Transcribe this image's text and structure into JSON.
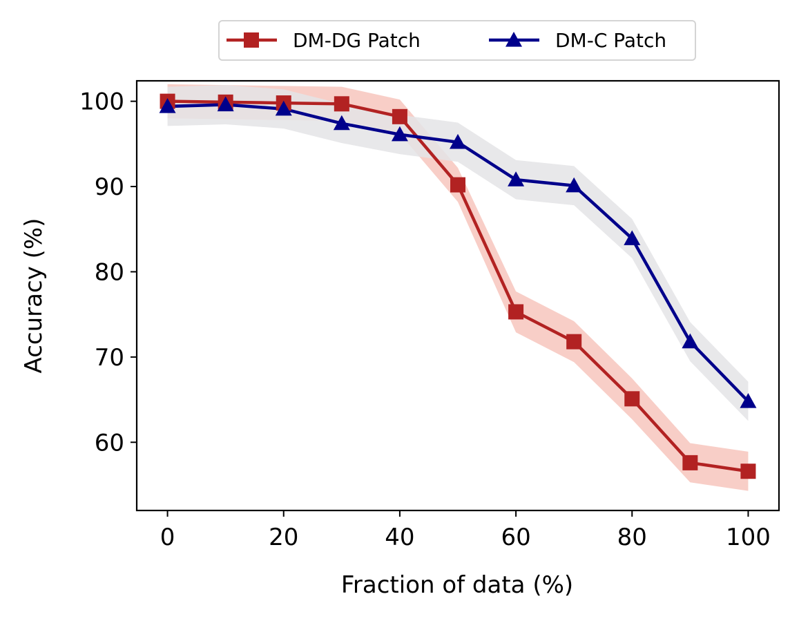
{
  "chart_data": {
    "type": "line",
    "xlabel": "Fraction of data (%)",
    "ylabel": "Accuracy (%)",
    "xlim": [
      -5.3,
      105.3
    ],
    "ylim": [
      52,
      102.4
    ],
    "xticks": [
      "0",
      "20",
      "40",
      "60",
      "80",
      "100"
    ],
    "yticks": [
      "60",
      "70",
      "80",
      "90",
      "100"
    ],
    "x": [
      0,
      10,
      20,
      30,
      40,
      50,
      60,
      70,
      80,
      90,
      100
    ],
    "grid": false,
    "legend_position": "top-center, outside",
    "series": [
      {
        "name": "DM-DG Patch",
        "marker": "square",
        "color": "#b22222",
        "band_color": "#f7c6bd",
        "values": [
          100.0,
          99.9,
          99.8,
          99.7,
          98.2,
          90.2,
          75.3,
          71.8,
          65.1,
          57.6,
          56.6
        ],
        "band": [
          2.0,
          2.0,
          2.0,
          2.0,
          2.0,
          2.0,
          2.4,
          2.4,
          2.4,
          2.3,
          2.3
        ]
      },
      {
        "name": "DM-C Patch",
        "marker": "triangle",
        "color": "#00008b",
        "band_color": "#e4e4e6",
        "values": [
          99.4,
          99.6,
          99.1,
          97.4,
          96.1,
          95.2,
          90.8,
          90.1,
          83.9,
          71.8,
          64.8
        ],
        "band": [
          2.3,
          2.3,
          2.3,
          2.3,
          2.3,
          2.3,
          2.3,
          2.3,
          2.3,
          2.3,
          2.3
        ]
      }
    ]
  }
}
